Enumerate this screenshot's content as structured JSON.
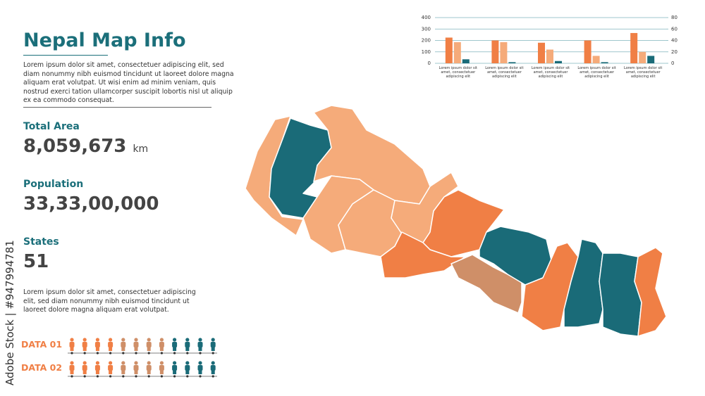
{
  "header": {
    "title": "Nepal Map Info",
    "intro": "Lorem ipsum dolor sit amet, consectetuer adipiscing elit, sed diam nonummy nibh euismod tincidunt ut laoreet dolore magna aliquam erat volutpat. Ut wisi enim ad minim veniam, quis nostrud exerci tation ullamcorper suscipit lobortis nisl ut aliquip ex ea commodo consequat."
  },
  "stats": [
    {
      "label": "Total Area",
      "value": "8,059,673",
      "unit": "km"
    },
    {
      "label": "Population",
      "value": "33,33,00,000"
    },
    {
      "label": "States",
      "value": "51"
    }
  ],
  "note": "Lorem ipsum dolor sit amet, consectetuer adipiscing elit, sed diam nonummy nibh euismod tincidunt ut laoreet dolore magna aliquam erat volutpat.",
  "pictograms": [
    {
      "label": "DATA 01",
      "icons": [
        "#f07f45",
        "#f07f45",
        "#f07f45",
        "#f07f45",
        "#cf8f68",
        "#cf8f68",
        "#cf8f68",
        "#cf8f68",
        "#1a6b78",
        "#1a6b78",
        "#1a6b78",
        "#1a6b78"
      ]
    },
    {
      "label": "DATA 02",
      "icons": [
        "#f07f45",
        "#f07f45",
        "#f07f45",
        "#f07f45",
        "#cf8f68",
        "#cf8f68",
        "#cf8f68",
        "#cf8f68",
        "#1a6b78",
        "#1a6b78",
        "#1a6b78",
        "#1a6b78"
      ]
    }
  ],
  "watermark": "Adobe Stock | #947994781",
  "chart_data": {
    "type": "bar",
    "categories": [
      "Lorem ipsum dolor sit amet, consectetuer adipiscing elit",
      "Lorem ipsum dolor sit amet, consectetuer adipiscing elit",
      "Lorem ipsum dolor sit amet, consectetuer adipiscing elit",
      "Lorem ipsum dolor sit amet, consectetuer adipiscing elit",
      "Lorem ipsum dolor sit amet, consectetuer adipiscing elit"
    ],
    "series": [
      {
        "color": "#f07f45",
        "values": [
          225,
          200,
          180,
          200,
          265
        ]
      },
      {
        "color": "#f5ab7a",
        "values": [
          185,
          185,
          120,
          65,
          100
        ]
      },
      {
        "color": "#1a6b78",
        "values": [
          35,
          10,
          20,
          10,
          65
        ]
      }
    ],
    "ylim": [
      0,
      400
    ],
    "yticks": [
      0,
      100,
      200,
      300,
      400
    ],
    "y2lim": [
      0,
      80
    ],
    "y2ticks": [
      0,
      20,
      40,
      60,
      80
    ],
    "grid": true
  }
}
